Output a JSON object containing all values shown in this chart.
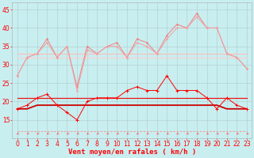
{
  "x": [
    0,
    1,
    2,
    3,
    4,
    5,
    6,
    7,
    8,
    9,
    10,
    11,
    12,
    13,
    14,
    15,
    16,
    17,
    18,
    19,
    20,
    21,
    22,
    23
  ],
  "y_pink_top": [
    27,
    32,
    33,
    37,
    32,
    35,
    24,
    35,
    33,
    35,
    36,
    32,
    37,
    36,
    33,
    38,
    41,
    40,
    44,
    40,
    40,
    33,
    32,
    29
  ],
  "y_pink_mid": [
    27,
    32,
    33,
    36,
    32,
    35,
    23,
    34,
    33,
    35,
    35,
    32,
    36,
    35,
    33,
    37,
    40,
    40,
    43,
    40,
    40,
    33,
    32,
    29
  ],
  "y_pink_flat1": [
    33,
    33,
    33,
    33,
    33,
    33,
    33,
    33,
    33,
    33,
    33,
    33,
    33,
    33,
    33,
    33,
    33,
    33,
    33,
    33,
    33,
    33,
    33,
    33
  ],
  "y_pink_flat2": [
    32,
    32,
    32,
    32,
    32,
    32,
    32,
    32,
    32,
    32,
    32,
    32,
    32,
    32,
    32,
    32,
    32,
    32,
    32,
    32,
    32,
    32,
    32,
    32
  ],
  "y_red_spiky": [
    18,
    19,
    21,
    22,
    19,
    17,
    15,
    20,
    21,
    21,
    21,
    23,
    24,
    23,
    23,
    27,
    23,
    23,
    23,
    21,
    18,
    21,
    19,
    18
  ],
  "y_red_flat21a": [
    21,
    21,
    21,
    21,
    21,
    21,
    21,
    21,
    21,
    21,
    21,
    21,
    21,
    21,
    21,
    21,
    21,
    21,
    21,
    21,
    21,
    21,
    21,
    21
  ],
  "y_red_flat21b": [
    21,
    21,
    21,
    21,
    21,
    21,
    21,
    21,
    21,
    21,
    21,
    21,
    21,
    21,
    21,
    21,
    21,
    21,
    21,
    21,
    21,
    21,
    21,
    21
  ],
  "y_dark_base": [
    18,
    18,
    19,
    19,
    19,
    19,
    19,
    19,
    19,
    19,
    19,
    19,
    19,
    19,
    19,
    19,
    19,
    19,
    19,
    19,
    19,
    18,
    18,
    18
  ],
  "y_dashed": [
    12,
    12,
    12,
    12,
    12,
    12,
    12,
    12,
    12,
    12,
    12,
    12,
    12,
    12,
    12,
    12,
    12,
    12,
    12,
    12,
    12,
    12,
    12,
    12
  ],
  "xlabel": "Vent moyen/en rafales ( km/h )",
  "ylim": [
    10,
    47
  ],
  "yticks": [
    15,
    20,
    25,
    30,
    35,
    40,
    45
  ],
  "xlim": [
    -0.5,
    23.5
  ],
  "xticks": [
    0,
    1,
    2,
    3,
    4,
    5,
    6,
    7,
    8,
    9,
    10,
    11,
    12,
    13,
    14,
    15,
    16,
    17,
    18,
    19,
    20,
    21,
    22,
    23
  ],
  "bg_color": "#c8eef0",
  "grid_color": "#b0c8c8",
  "xlabel_color": "#ff0000",
  "xlabel_fontsize": 6.5,
  "tick_fontsize": 5.5,
  "tick_color": "#ff0000",
  "color_pink_top": "#f08080",
  "color_pink_mid": "#f4a0a0",
  "color_pink_flat1": "#ffbbbb",
  "color_pink_flat2": "#ffcccc",
  "color_red_spiky": "#ff0000",
  "color_red_flat": "#ff2020",
  "color_dark_base": "#cc0000",
  "color_dashed": "#ff8888",
  "color_arrows": "#ff5555"
}
